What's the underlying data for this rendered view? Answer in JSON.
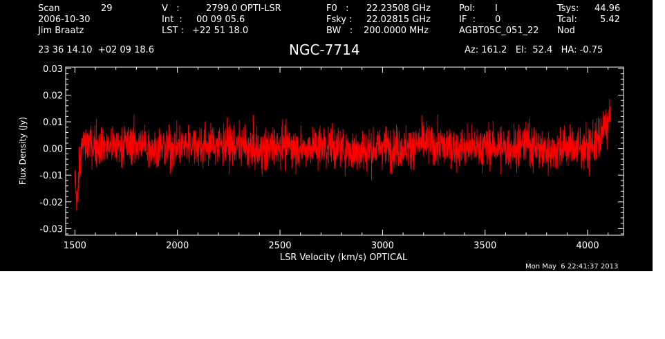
{
  "header": {
    "scan_label": "Scan",
    "scan_value": "29",
    "date": "2006-10-30",
    "observer": "Jim Braatz",
    "coords": "23 36 14.10  +02 09 18.6",
    "v_label": "V   :",
    "v_value": "2799.0 OPTI-LSR",
    "int_label": "Int  :",
    "int_value": "00 09 05.6",
    "lst_label": "LST :",
    "lst_value": "+22 51 18.0",
    "f0_label": "F0   :",
    "f0_value": "22.23508 GHz",
    "fsky_label": "Fsky :",
    "fsky_value": "22.02815 GHz",
    "bw_label": "BW   :",
    "bw_value": "200.0000 MHz",
    "pol_label": "Pol:",
    "pol_value": "I",
    "if_label": "IF  :",
    "if_value": "0",
    "project": "AGBT05C_051_22",
    "tsys_label": "Tsys:",
    "tsys_value": "44.96",
    "tcal_label": "Tcal:",
    "tcal_value": "5.42",
    "mode": "Nod",
    "pointing": "Az: 161.2   El:  52.4   HA: -0.75"
  },
  "footer": {
    "timestamp": "Mon May  6 22:41:37 2013"
  },
  "chart_data": {
    "type": "line",
    "title": "NGC-7714",
    "xlabel": "LSR Velocity (km/s) OPTICAL",
    "ylabel": "Flux Density (Jy)",
    "xlim": [
      1455,
      4175
    ],
    "ylim": [
      -0.0325,
      0.0305
    ],
    "xticks": [
      1500,
      2000,
      2500,
      3000,
      3500,
      4000
    ],
    "xtick_labels": [
      "1500",
      "2000",
      "2500",
      "3000",
      "3500",
      "4000"
    ],
    "yticks": [
      -0.03,
      -0.02,
      -0.01,
      0.0,
      0.01,
      0.02,
      0.03
    ],
    "ytick_labels": [
      "-0.03",
      "-0.02",
      "-0.01",
      "0.00",
      "0.01",
      "0.02",
      "0.03"
    ],
    "series": [
      {
        "color": "#ff0000",
        "x_start": 1500,
        "x_end": 4110,
        "x": [
          1500,
          1510,
          1520,
          1540,
          1560,
          1600,
          1700,
          1800,
          1900,
          2000,
          2080,
          2100,
          2200,
          2300,
          2400,
          2500,
          2600,
          2700,
          2800,
          2900,
          3000,
          3100,
          3200,
          3300,
          3400,
          3500,
          3600,
          3700,
          3800,
          3900,
          4000,
          4050,
          4080,
          4100,
          4110
        ],
        "y": [
          -0.012,
          -0.02,
          -0.008,
          0.002,
          0.003,
          0.001,
          0.001,
          0.002,
          0.0,
          0.001,
          0.002,
          0.001,
          0.002,
          0.001,
          -0.001,
          0.002,
          0.0,
          0.001,
          0.0,
          -0.001,
          0.001,
          0.0,
          0.002,
          0.001,
          0.0,
          0.001,
          0.0,
          0.002,
          -0.001,
          0.001,
          0.0,
          0.003,
          0.007,
          0.01,
          0.012
        ],
        "noise_rms": 0.006,
        "y_max_approx": 0.023,
        "y_min_approx": -0.027
      }
    ],
    "grid": false,
    "legend": "none"
  }
}
